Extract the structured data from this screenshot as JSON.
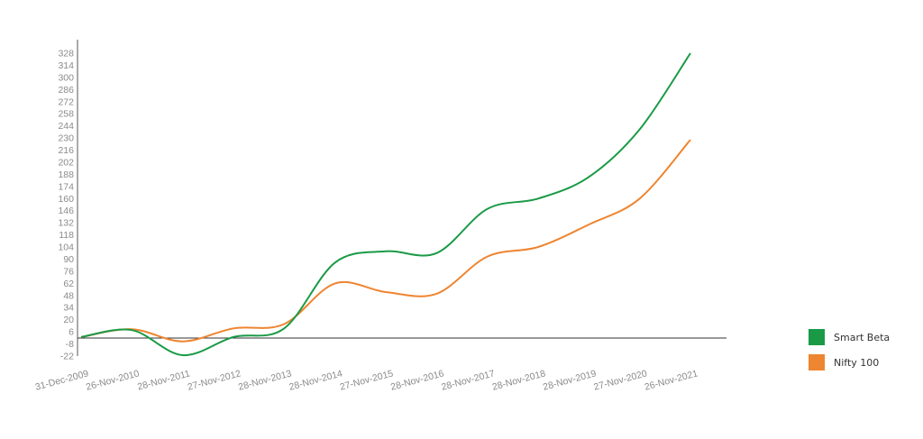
{
  "chart_data": {
    "type": "line",
    "title": "",
    "xlabel": "",
    "ylabel": "",
    "categories": [
      "31-Dec-2009",
      "26-Nov-2010",
      "28-Nov-2011",
      "27-Nov-2012",
      "28-Nov-2013",
      "28-Nov-2014",
      "27-Nov-2015",
      "28-Nov-2016",
      "28-Nov-2017",
      "28-Nov-2018",
      "28-Nov-2019",
      "27-Nov-2020",
      "26-Nov-2021"
    ],
    "y_ticks": [
      -22,
      -8,
      6,
      20,
      34,
      48,
      62,
      76,
      90,
      104,
      118,
      132,
      146,
      160,
      174,
      188,
      202,
      216,
      230,
      244,
      258,
      272,
      286,
      300,
      314,
      328
    ],
    "ylim": [
      -22,
      328
    ],
    "grid": false,
    "legend_position": "right",
    "series": [
      {
        "name": "Smart Beta",
        "color": "#1a9a46",
        "values": [
          0,
          8,
          -21,
          0,
          10,
          86,
          99,
          97,
          148,
          160,
          185,
          240,
          328
        ]
      },
      {
        "name": "Nifty 100",
        "color": "#ee8530",
        "values": [
          0,
          9,
          -5,
          10,
          15,
          62,
          52,
          50,
          93,
          104,
          130,
          160,
          228
        ]
      }
    ]
  }
}
